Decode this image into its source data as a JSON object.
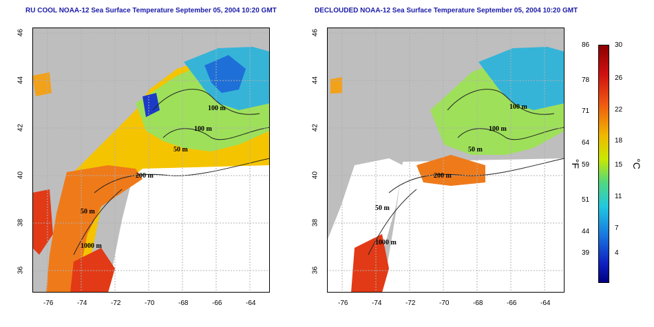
{
  "titles": {
    "left": "RU COOL NOAA-12 Sea Surface Temperature September 05, 2004 10:20 GMT",
    "right": "DECLOUDED NOAA-12 Sea Surface Temperature September 05, 2004 10:20 GMT"
  },
  "axes": {
    "lon_ticks": [
      "-76",
      "-74",
      "-72",
      "-70",
      "-68",
      "-66",
      "-64"
    ],
    "lat_ticks": [
      "46",
      "44",
      "42",
      "40",
      "38",
      "36"
    ]
  },
  "contour_labels": [
    "100 m",
    "100 m",
    "50 m",
    "200 m",
    "50 m",
    "1000 m"
  ],
  "colorbar": {
    "unit_f": "°F",
    "unit_c": "°C",
    "f_ticks": [
      "86",
      "78",
      "71",
      "64",
      "59",
      "51",
      "44",
      "39"
    ],
    "c_ticks": [
      "30",
      "26",
      "22",
      "18",
      "15",
      "11",
      "7",
      "4"
    ]
  },
  "colors": {
    "land": "#bebebe",
    "ocean_nodata": "#ffffff",
    "grid": "#b0b0b0",
    "title": "#1a1aa8"
  }
}
